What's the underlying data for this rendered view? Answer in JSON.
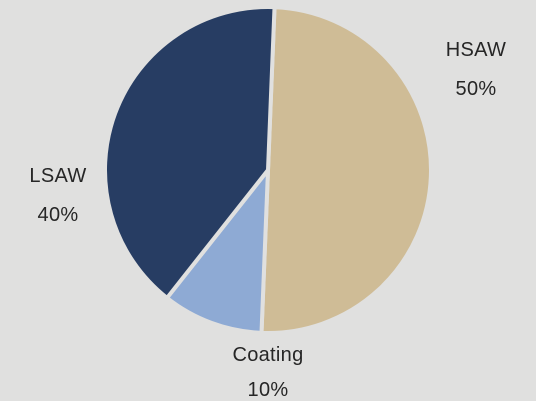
{
  "chart_data": {
    "type": "pie",
    "title": "",
    "legend": "none",
    "slices": [
      {
        "label": "HSAW",
        "percent_label": "50%",
        "value": 50,
        "color": "#cfbc96"
      },
      {
        "label": "Coating",
        "percent_label": "10%",
        "value": 10,
        "color": "#8eaad4"
      },
      {
        "label": "LSAW",
        "percent_label": "40%",
        "value": 40,
        "color": "#273d63"
      }
    ],
    "background": "#e0e0df",
    "separator_color": "#e0e0df"
  }
}
